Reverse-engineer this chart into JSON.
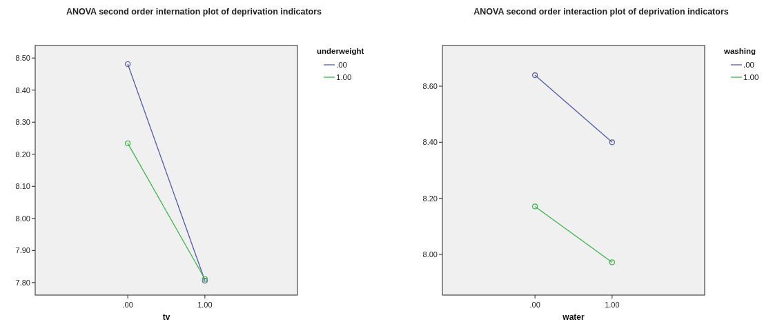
{
  "chart_data": [
    {
      "type": "line",
      "title": "ANOVA second order internation plot of deprivation indicators",
      "xlabel": "tv",
      "legend_title": "underweight",
      "categories": [
        ".00",
        "1.00"
      ],
      "ylim": [
        7.761,
        8.539
      ],
      "yticks": [
        {
          "value": 7.8,
          "label": "7.80"
        },
        {
          "value": 7.9,
          "label": "7.90"
        },
        {
          "value": 8.0,
          "label": "8.00"
        },
        {
          "value": 8.1,
          "label": "8.10"
        },
        {
          "value": 8.2,
          "label": "8.20"
        },
        {
          "value": 8.3,
          "label": "8.30"
        },
        {
          "value": 8.4,
          "label": "8.40"
        },
        {
          "value": 8.5,
          "label": "8.50"
        }
      ],
      "grid": false,
      "legend": "top right",
      "marker": "circle",
      "line_style": "solid",
      "series": [
        {
          "name": ".00",
          "color": "#4f5bab",
          "values": [
            8.481,
            7.806
          ]
        },
        {
          "name": "1.00",
          "color": "#3cb44b",
          "values": [
            8.234,
            7.811
          ]
        }
      ]
    },
    {
      "type": "line",
      "title": "ANOVA second order interaction plot of deprivation indicators",
      "xlabel": "water",
      "legend_title": "washing",
      "categories": [
        ".00",
        "1.00"
      ],
      "ylim": [
        7.855,
        8.745
      ],
      "yticks": [
        {
          "value": 8.0,
          "label": "8.00"
        },
        {
          "value": 8.2,
          "label": "8.20"
        },
        {
          "value": 8.4,
          "label": "8.40"
        },
        {
          "value": 8.6,
          "label": "8.60"
        }
      ],
      "grid": false,
      "legend": "top right",
      "marker": "circle",
      "line_style": "solid",
      "series": [
        {
          "name": ".00",
          "color": "#4f5bab",
          "values": [
            8.639,
            8.4
          ]
        },
        {
          "name": "1.00",
          "color": "#3cb44b",
          "values": [
            8.171,
            7.972
          ]
        }
      ]
    }
  ]
}
